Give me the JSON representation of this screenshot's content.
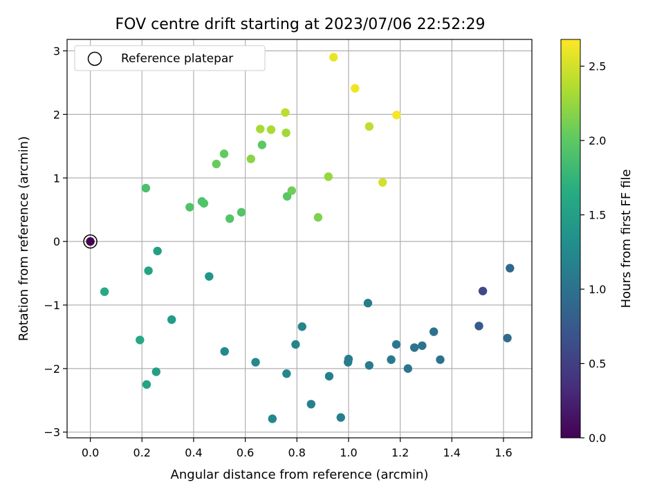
{
  "chart_data": {
    "type": "scatter",
    "title": "FOV centre drift starting at 2023/07/06 22:52:29",
    "xlabel": "Angular distance from reference (arcmin)",
    "ylabel": "Rotation from reference (arcmin)",
    "xlim": [
      -0.09,
      1.71
    ],
    "ylim": [
      -3.09,
      3.18
    ],
    "xticks": [
      0.0,
      0.2,
      0.4,
      0.6,
      0.8,
      1.0,
      1.2,
      1.4,
      1.6
    ],
    "xtick_labels": [
      "0.0",
      "0.2",
      "0.4",
      "0.6",
      "0.8",
      "1.0",
      "1.2",
      "1.4",
      "1.6"
    ],
    "yticks": [
      -3,
      -2,
      -1,
      0,
      1,
      2,
      3
    ],
    "ytick_labels": [
      "−3",
      "−2",
      "−1",
      "0",
      "1",
      "2",
      "3"
    ],
    "grid": true,
    "legend": {
      "position": "top-left",
      "entries": [
        "Reference platepar"
      ]
    },
    "colorbar": {
      "label": "Hours from first FF file",
      "colormap": "viridis",
      "range": [
        0.0,
        2.68
      ],
      "ticks": [
        0.0,
        0.5,
        1.0,
        1.5,
        2.0,
        2.5
      ],
      "tick_labels": [
        "0.0",
        "0.5",
        "1.0",
        "1.5",
        "2.0",
        "2.5"
      ]
    },
    "reference_point": {
      "x": 0.0,
      "y": 0.0,
      "c": 0.0
    },
    "points": [
      {
        "x": 0.0,
        "y": 0.0,
        "c": 0.0
      },
      {
        "x": 1.52,
        "y": -0.78,
        "c": 0.6
      },
      {
        "x": 1.505,
        "y": -1.33,
        "c": 0.75
      },
      {
        "x": 1.625,
        "y": -0.42,
        "c": 0.9
      },
      {
        "x": 1.615,
        "y": -1.52,
        "c": 0.92
      },
      {
        "x": 1.355,
        "y": -1.86,
        "c": 1.0
      },
      {
        "x": 1.33,
        "y": -1.42,
        "c": 1.0
      },
      {
        "x": 1.285,
        "y": -1.64,
        "c": 1.02
      },
      {
        "x": 1.255,
        "y": -1.67,
        "c": 1.02
      },
      {
        "x": 1.23,
        "y": -2.0,
        "c": 1.05
      },
      {
        "x": 1.185,
        "y": -1.62,
        "c": 1.07
      },
      {
        "x": 1.165,
        "y": -1.86,
        "c": 1.07
      },
      {
        "x": 1.08,
        "y": -1.95,
        "c": 1.1
      },
      {
        "x": 1.075,
        "y": -0.97,
        "c": 1.1
      },
      {
        "x": 1.0,
        "y": -1.85,
        "c": 1.12
      },
      {
        "x": 0.998,
        "y": -1.9,
        "c": 1.12
      },
      {
        "x": 0.97,
        "y": -2.77,
        "c": 1.15
      },
      {
        "x": 0.925,
        "y": -2.12,
        "c": 1.15
      },
      {
        "x": 0.855,
        "y": -2.56,
        "c": 1.17
      },
      {
        "x": 0.82,
        "y": -1.34,
        "c": 1.2
      },
      {
        "x": 0.795,
        "y": -1.62,
        "c": 1.2
      },
      {
        "x": 0.76,
        "y": -2.08,
        "c": 1.22
      },
      {
        "x": 0.705,
        "y": -2.79,
        "c": 1.22
      },
      {
        "x": 0.64,
        "y": -1.9,
        "c": 1.25
      },
      {
        "x": 0.52,
        "y": -1.73,
        "c": 1.25
      },
      {
        "x": 0.46,
        "y": -0.55,
        "c": 1.4
      },
      {
        "x": 0.315,
        "y": -1.23,
        "c": 1.45
      },
      {
        "x": 0.26,
        "y": -0.15,
        "c": 1.5
      },
      {
        "x": 0.255,
        "y": -2.05,
        "c": 1.5
      },
      {
        "x": 0.225,
        "y": -0.46,
        "c": 1.55
      },
      {
        "x": 0.218,
        "y": -2.25,
        "c": 1.55
      },
      {
        "x": 0.192,
        "y": -1.55,
        "c": 1.6
      },
      {
        "x": 0.055,
        "y": -0.79,
        "c": 1.6
      },
      {
        "x": 0.215,
        "y": 0.84,
        "c": 1.9
      },
      {
        "x": 0.385,
        "y": 0.54,
        "c": 1.92
      },
      {
        "x": 0.432,
        "y": 0.63,
        "c": 1.92
      },
      {
        "x": 0.44,
        "y": 0.6,
        "c": 1.93
      },
      {
        "x": 0.54,
        "y": 0.36,
        "c": 1.95
      },
      {
        "x": 0.585,
        "y": 0.46,
        "c": 1.95
      },
      {
        "x": 0.762,
        "y": 0.71,
        "c": 1.97
      },
      {
        "x": 0.488,
        "y": 1.22,
        "c": 2.05
      },
      {
        "x": 0.518,
        "y": 1.38,
        "c": 2.03
      },
      {
        "x": 0.665,
        "y": 1.52,
        "c": 2.0
      },
      {
        "x": 0.78,
        "y": 0.8,
        "c": 2.08
      },
      {
        "x": 0.882,
        "y": 0.38,
        "c": 2.15
      },
      {
        "x": 0.622,
        "y": 1.3,
        "c": 2.2
      },
      {
        "x": 0.922,
        "y": 1.02,
        "c": 2.25
      },
      {
        "x": 0.658,
        "y": 1.77,
        "c": 2.32
      },
      {
        "x": 0.7,
        "y": 1.76,
        "c": 2.33
      },
      {
        "x": 0.758,
        "y": 1.71,
        "c": 2.3
      },
      {
        "x": 0.755,
        "y": 2.03,
        "c": 2.4
      },
      {
        "x": 1.08,
        "y": 1.81,
        "c": 2.42
      },
      {
        "x": 1.132,
        "y": 0.93,
        "c": 2.5
      },
      {
        "x": 1.025,
        "y": 2.41,
        "c": 2.62
      },
      {
        "x": 0.942,
        "y": 2.9,
        "c": 2.6
      },
      {
        "x": 1.186,
        "y": 1.99,
        "c": 2.65
      }
    ]
  }
}
